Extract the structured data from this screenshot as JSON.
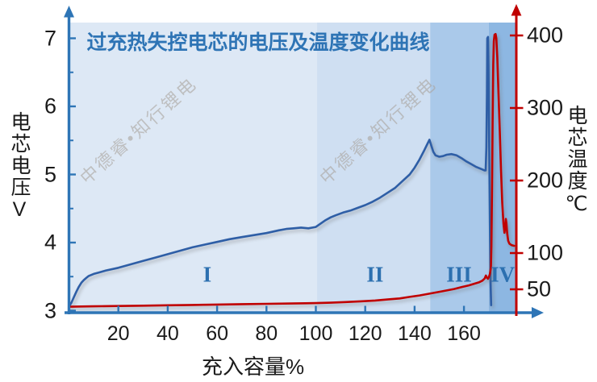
{
  "watermark": {
    "text": "中德睿•知行锂电"
  },
  "chart_data": {
    "type": "line",
    "title": "过充热失控电芯的电压及温度变化曲线",
    "xlabel": "充入容量%",
    "ylabel_left": "电芯电压V",
    "ylabel_right": "电芯温度℃",
    "x_range": [
      0,
      181.3
    ],
    "x_ticks": [
      20,
      40,
      60,
      80,
      100,
      120,
      140,
      160
    ],
    "y_left_range": [
      3,
      7.3
    ],
    "y_left_ticks": [
      3,
      4,
      5,
      6,
      7
    ],
    "y_left_minor_ticks": [
      3.5,
      4.5,
      5.5,
      6.5
    ],
    "y_right_range": [
      0,
      440
    ],
    "y_right_ticks": [
      50,
      100,
      200,
      300,
      400
    ],
    "grid": false,
    "legend": "none",
    "regions": [
      {
        "label": "I",
        "range": [
          0,
          100.5
        ],
        "label_at": 56,
        "color": "#dde8f5"
      },
      {
        "label": "II",
        "range": [
          100.5,
          146.3
        ],
        "label_at": 124,
        "color": "#cfdff2"
      },
      {
        "label": "III",
        "range": [
          146.3,
          170
        ],
        "label_at": 158,
        "color": "#aac9ea"
      },
      {
        "label": "IV",
        "range": [
          170,
          181.3
        ],
        "label_at": 175.7,
        "color": "#8db7e2"
      }
    ],
    "series": [
      {
        "name": "电芯电压",
        "axis": "left",
        "color": "#2e5ea6",
        "points": [
          [
            0,
            3.06
          ],
          [
            1,
            3.12
          ],
          [
            2,
            3.2
          ],
          [
            3,
            3.28
          ],
          [
            4,
            3.35
          ],
          [
            5,
            3.41
          ],
          [
            6,
            3.45
          ],
          [
            7,
            3.48
          ],
          [
            8,
            3.51
          ],
          [
            10,
            3.54
          ],
          [
            12,
            3.56
          ],
          [
            15,
            3.59
          ],
          [
            20,
            3.63
          ],
          [
            25,
            3.68
          ],
          [
            30,
            3.73
          ],
          [
            35,
            3.78
          ],
          [
            40,
            3.83
          ],
          [
            45,
            3.88
          ],
          [
            50,
            3.93
          ],
          [
            55,
            3.97
          ],
          [
            60,
            4.01
          ],
          [
            65,
            4.05
          ],
          [
            70,
            4.08
          ],
          [
            75,
            4.11
          ],
          [
            80,
            4.14
          ],
          [
            85,
            4.18
          ],
          [
            88,
            4.2
          ],
          [
            91,
            4.21
          ],
          [
            94,
            4.22
          ],
          [
            97,
            4.21
          ],
          [
            100,
            4.23
          ],
          [
            102,
            4.28
          ],
          [
            104,
            4.33
          ],
          [
            106,
            4.37
          ],
          [
            108,
            4.4
          ],
          [
            111,
            4.44
          ],
          [
            114,
            4.47
          ],
          [
            117,
            4.51
          ],
          [
            120,
            4.55
          ],
          [
            123,
            4.6
          ],
          [
            126,
            4.66
          ],
          [
            129,
            4.73
          ],
          [
            132,
            4.8
          ],
          [
            135,
            4.9
          ],
          [
            138,
            5.0
          ],
          [
            140,
            5.1
          ],
          [
            142,
            5.22
          ],
          [
            144,
            5.36
          ],
          [
            145.2,
            5.45
          ],
          [
            146,
            5.51
          ],
          [
            146.8,
            5.42
          ],
          [
            147.6,
            5.33
          ],
          [
            148.5,
            5.28
          ],
          [
            150,
            5.26
          ],
          [
            151.5,
            5.27
          ],
          [
            153,
            5.29
          ],
          [
            155,
            5.3
          ],
          [
            157,
            5.28
          ],
          [
            159,
            5.24
          ],
          [
            161,
            5.19
          ],
          [
            163,
            5.15
          ],
          [
            165,
            5.11
          ],
          [
            167,
            5.08
          ],
          [
            168.3,
            5.06
          ],
          [
            168.8,
            5.06
          ],
          [
            169.1,
            5.4
          ],
          [
            169.3,
            6.2
          ],
          [
            169.45,
            7.0
          ],
          [
            169.75,
            7.02
          ],
          [
            169.95,
            6.6
          ],
          [
            170.2,
            5.5
          ],
          [
            170.5,
            4.3
          ],
          [
            170.8,
            3.4
          ],
          [
            171,
            3.08
          ]
        ]
      },
      {
        "name": "电芯温度",
        "axis": "right",
        "color": "#c00000",
        "points": [
          [
            0,
            26
          ],
          [
            10,
            26.5
          ],
          [
            20,
            27
          ],
          [
            30,
            27.5
          ],
          [
            40,
            28
          ],
          [
            50,
            28.5
          ],
          [
            60,
            29
          ],
          [
            70,
            29.5
          ],
          [
            80,
            30
          ],
          [
            90,
            30.5
          ],
          [
            100,
            31
          ],
          [
            106,
            31.5
          ],
          [
            112,
            32.5
          ],
          [
            118,
            33.5
          ],
          [
            124,
            34.5
          ],
          [
            129,
            36
          ],
          [
            134,
            37.5
          ],
          [
            138,
            39.5
          ],
          [
            142,
            41.5
          ],
          [
            146,
            44
          ],
          [
            150,
            46.5
          ],
          [
            153,
            48.5
          ],
          [
            156,
            50.5
          ],
          [
            159,
            53
          ],
          [
            162,
            55.5
          ],
          [
            164,
            57.5
          ],
          [
            166,
            59.5
          ],
          [
            167.5,
            62
          ],
          [
            168.4,
            65
          ],
          [
            168.9,
            69
          ],
          [
            169.3,
            66
          ],
          [
            169.7,
            64.5
          ],
          [
            170.1,
            67
          ],
          [
            170.5,
            71
          ],
          [
            170.9,
            80
          ],
          [
            171.1,
            110
          ],
          [
            171.35,
            180
          ],
          [
            171.6,
            280
          ],
          [
            171.85,
            360
          ],
          [
            172.1,
            392
          ],
          [
            172.4,
            401
          ],
          [
            172.8,
            402
          ],
          [
            173.1,
            396
          ],
          [
            173.5,
            370
          ],
          [
            174,
            320
          ],
          [
            174.5,
            268
          ],
          [
            175,
            215
          ],
          [
            175.5,
            170
          ],
          [
            176,
            140
          ],
          [
            176.4,
            128
          ],
          [
            176.7,
            135
          ],
          [
            176.95,
            147
          ],
          [
            177.2,
            141
          ],
          [
            177.5,
            128
          ],
          [
            177.9,
            117
          ],
          [
            178.4,
            113
          ],
          [
            179.2,
            111
          ],
          [
            180.3,
            110
          ]
        ]
      }
    ],
    "colors": {
      "axis_blue": "#2e75b6",
      "axis_red": "#c00000",
      "title_text": "#2e74b5",
      "region_label": "#2c70b0",
      "tick_text": "#1a1a1a",
      "watermark": "#aaa49e"
    }
  }
}
